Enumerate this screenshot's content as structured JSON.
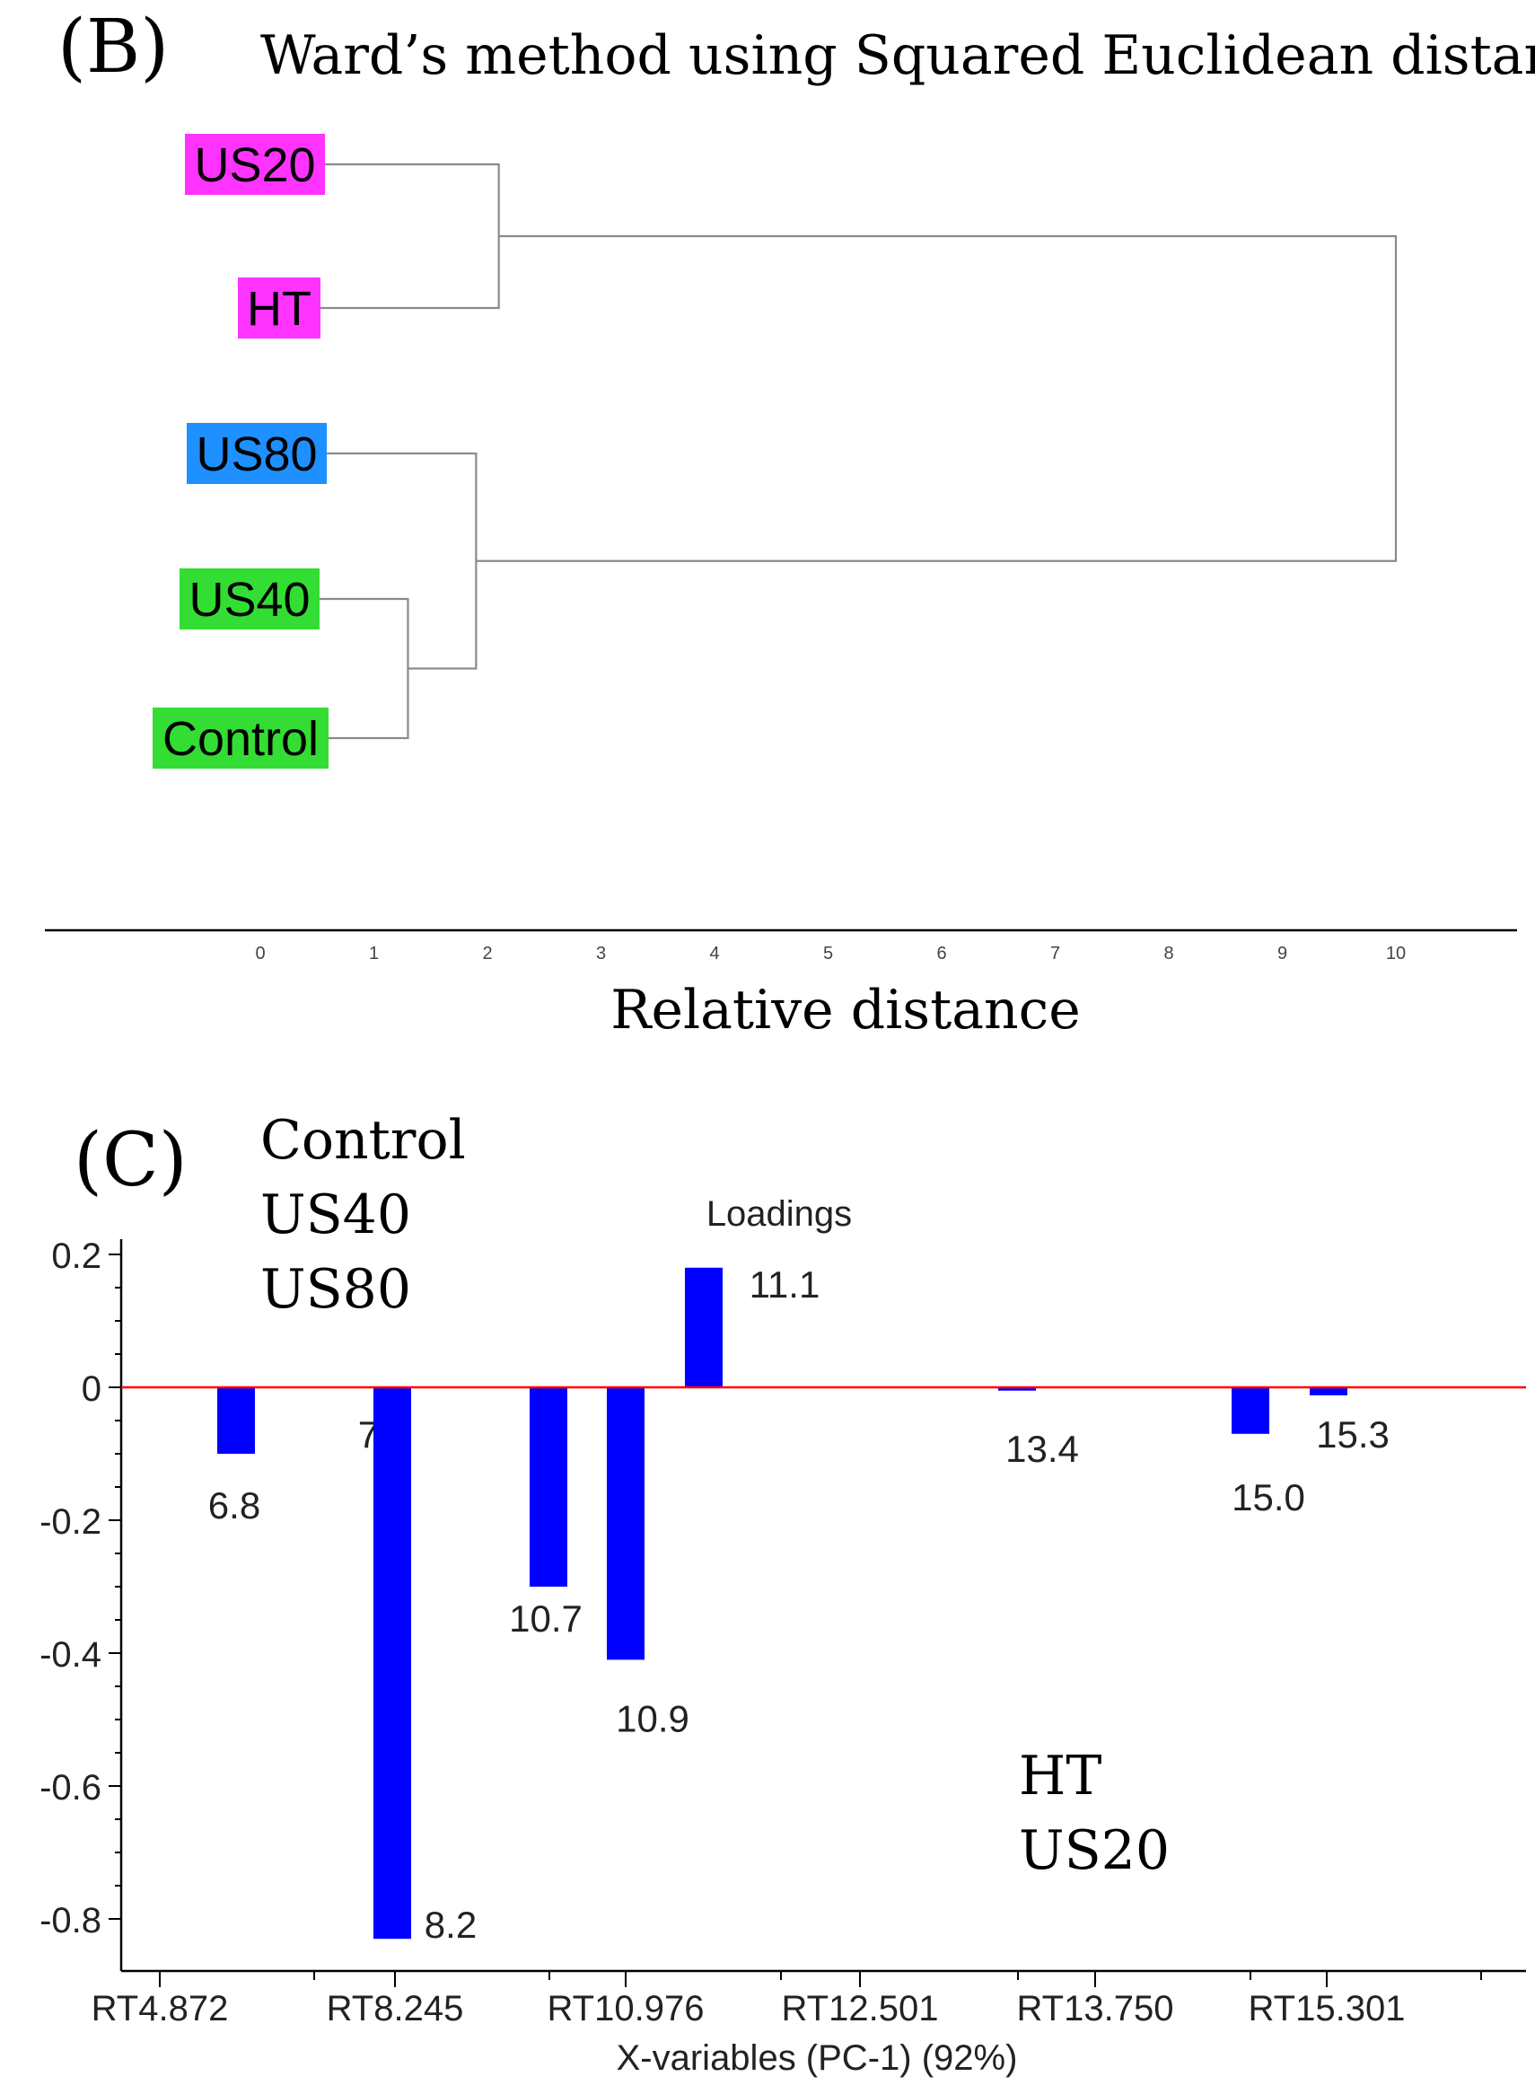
{
  "panel_b": {
    "panel_label": "(B)",
    "title": "Ward’s method using Squared Euclidean distance",
    "xlabel": "Relative distance"
  },
  "panel_c": {
    "panel_label": "(C)",
    "group_pos": [
      "Control",
      "US40",
      "US80"
    ],
    "group_neg": [
      "HT",
      "US20"
    ]
  },
  "chart_data": [
    {
      "type": "dendrogram",
      "title": "Ward’s method using Squared Euclidean distance",
      "xlabel": "Relative distance",
      "xlim": [
        0,
        10
      ],
      "xticks": [
        0,
        1,
        2,
        3,
        4,
        5,
        6,
        7,
        8,
        9,
        10
      ],
      "leaves": [
        {
          "label": "US20",
          "color": "#ff33ff"
        },
        {
          "label": "HT",
          "color": "#ff33ff"
        },
        {
          "label": "US80",
          "color": "#1e90ff"
        },
        {
          "label": "US40",
          "color": "#33dd33"
        },
        {
          "label": "Control",
          "color": "#33dd33"
        }
      ],
      "merges": [
        {
          "left": "US40",
          "right": "Control",
          "height": 1.3
        },
        {
          "left": "US80",
          "right": "US40+Control",
          "height": 1.9
        },
        {
          "left": "US20",
          "right": "HT",
          "height": 2.1
        },
        {
          "left": "US20+HT",
          "right": "US80+US40+Control",
          "height": 10.0
        }
      ]
    },
    {
      "type": "bar",
      "title": "Loadings",
      "xlabel": "X-variables (PC-1) (92%)",
      "ylabel": "",
      "ylim": [
        -0.88,
        0.22
      ],
      "yticks": [
        0.2,
        0,
        -0.2,
        -0.4,
        -0.6,
        -0.8
      ],
      "ytick_labels": [
        "0.2",
        "0",
        "-0.2",
        "-0.4",
        "-0.6",
        "-0.8"
      ],
      "xtick_labels": [
        "RT4.872",
        "RT8.245",
        "RT10.976",
        "RT12.501",
        "RT13.750",
        "RT15.301"
      ],
      "zero_line_color": "#ff0000",
      "bar_color": "#0000ff",
      "bars": [
        {
          "label": "6.8",
          "value": -0.1
        },
        {
          "label": "7.6",
          "value": 0.0
        },
        {
          "label": "8.2",
          "value": -0.83
        },
        {
          "label": "10.7",
          "value": -0.3
        },
        {
          "label": "10.9",
          "value": -0.41
        },
        {
          "label": "11.1",
          "value": 0.18
        },
        {
          "label": "13.4",
          "value": -0.005
        },
        {
          "label": "15.0",
          "value": -0.07
        },
        {
          "label": "15.3",
          "value": -0.012
        }
      ]
    }
  ]
}
